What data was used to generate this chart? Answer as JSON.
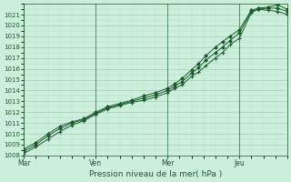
{
  "background_color": "#cceedd",
  "plot_bg_color": "#cceedd",
  "grid_major_color": "#aaccbb",
  "grid_minor_color": "#bbddcc",
  "line_color": "#1a5c2a",
  "title": "",
  "xlabel": "Pression niveau de la mer( hPa )",
  "ylim": [
    1008,
    1022
  ],
  "yticks": [
    1008,
    1009,
    1010,
    1011,
    1012,
    1013,
    1014,
    1015,
    1016,
    1017,
    1018,
    1019,
    1020,
    1021
  ],
  "xtick_labels": [
    "Mar",
    "Ven",
    "Mer",
    "Jeu"
  ],
  "series1_x": [
    0,
    0.5,
    1.0,
    1.5,
    2.0,
    2.5,
    3.0,
    3.5,
    4.0,
    4.5,
    5.0,
    5.5,
    6.0,
    6.3,
    6.6,
    7.0,
    7.3,
    7.6,
    8.0,
    8.3,
    8.6,
    9.0,
    9.5,
    9.8,
    10.2,
    10.6,
    11.0
  ],
  "series1_y": [
    1008.2,
    1008.8,
    1009.5,
    1010.2,
    1010.8,
    1011.2,
    1011.8,
    1012.3,
    1012.6,
    1012.9,
    1013.1,
    1013.4,
    1013.8,
    1014.2,
    1014.5,
    1015.3,
    1015.7,
    1016.3,
    1017.0,
    1017.5,
    1018.2,
    1018.8,
    1021.2,
    1021.5,
    1021.4,
    1021.3,
    1021.0
  ],
  "series2_x": [
    0,
    0.5,
    1.0,
    1.5,
    2.0,
    2.5,
    3.0,
    3.5,
    4.0,
    4.5,
    5.0,
    5.5,
    6.0,
    6.3,
    6.6,
    7.0,
    7.3,
    7.6,
    8.0,
    8.3,
    8.6,
    9.0,
    9.5,
    9.8,
    10.2,
    10.6,
    11.0
  ],
  "series2_y": [
    1008.4,
    1009.0,
    1009.8,
    1010.5,
    1011.0,
    1011.3,
    1011.9,
    1012.4,
    1012.7,
    1013.0,
    1013.3,
    1013.6,
    1014.0,
    1014.4,
    1014.8,
    1015.6,
    1016.1,
    1016.8,
    1017.5,
    1018.0,
    1018.6,
    1019.3,
    1021.3,
    1021.5,
    1021.6,
    1021.6,
    1021.3
  ],
  "series3_x": [
    0,
    0.5,
    1.0,
    1.5,
    2.0,
    2.5,
    3.0,
    3.5,
    4.0,
    4.5,
    5.0,
    5.5,
    6.0,
    6.3,
    6.6,
    7.0,
    7.3,
    7.6,
    8.0,
    8.3,
    8.6,
    9.0,
    9.5,
    9.8,
    10.2,
    10.6,
    11.0
  ],
  "series3_y": [
    1008.6,
    1009.2,
    1010.0,
    1010.7,
    1011.1,
    1011.4,
    1012.0,
    1012.5,
    1012.8,
    1013.1,
    1013.5,
    1013.8,
    1014.2,
    1014.6,
    1015.1,
    1015.9,
    1016.5,
    1017.2,
    1018.0,
    1018.5,
    1019.0,
    1019.6,
    1021.4,
    1021.6,
    1021.7,
    1021.9,
    1021.5
  ],
  "vline_x": [
    0,
    3.0,
    6.0,
    9.0
  ],
  "xlim": [
    0,
    11.0
  ],
  "xtick_x": [
    0,
    3.0,
    6.0,
    9.0
  ]
}
